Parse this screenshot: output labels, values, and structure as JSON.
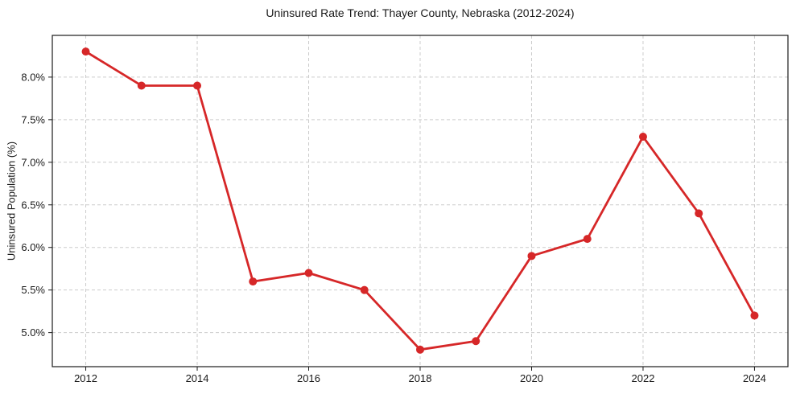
{
  "chart_data": {
    "type": "line",
    "title": "Uninsured Rate Trend: Thayer County, Nebraska (2012-2024)",
    "xlabel": "",
    "ylabel": "Uninsured Population (%)",
    "x": [
      2012,
      2013,
      2014,
      2015,
      2016,
      2017,
      2018,
      2019,
      2020,
      2021,
      2022,
      2023,
      2024
    ],
    "series": [
      {
        "name": "Uninsured Population (%)",
        "values": [
          8.3,
          7.9,
          7.9,
          5.6,
          5.7,
          5.5,
          4.8,
          4.9,
          5.9,
          6.1,
          7.3,
          6.4,
          5.2
        ]
      }
    ],
    "x_ticks": {
      "values": [
        2012,
        2014,
        2016,
        2018,
        2020,
        2022,
        2024
      ],
      "labels": [
        "2012",
        "2014",
        "2016",
        "2018",
        "2020",
        "2022",
        "2024"
      ]
    },
    "y_ticks": {
      "values": [
        5.0,
        5.5,
        6.0,
        6.5,
        7.0,
        7.5,
        8.0
      ],
      "labels": [
        "5.0%",
        "5.5%",
        "6.0%",
        "6.5%",
        "7.0%",
        "7.5%",
        "8.0%"
      ]
    },
    "xlim": [
      2011.4,
      2024.6
    ],
    "ylim": [
      4.6,
      8.49
    ],
    "grid": true,
    "legend": "none",
    "style": {
      "line_color": "#d62728",
      "marker": "circle",
      "marker_radius": 5,
      "line_width": 2.8,
      "grid_color": "#cccccc",
      "grid_dash": "4 3",
      "spine_color": "#1a1a1a",
      "text_color": "#1a1a1a",
      "background": "#ffffff"
    }
  }
}
